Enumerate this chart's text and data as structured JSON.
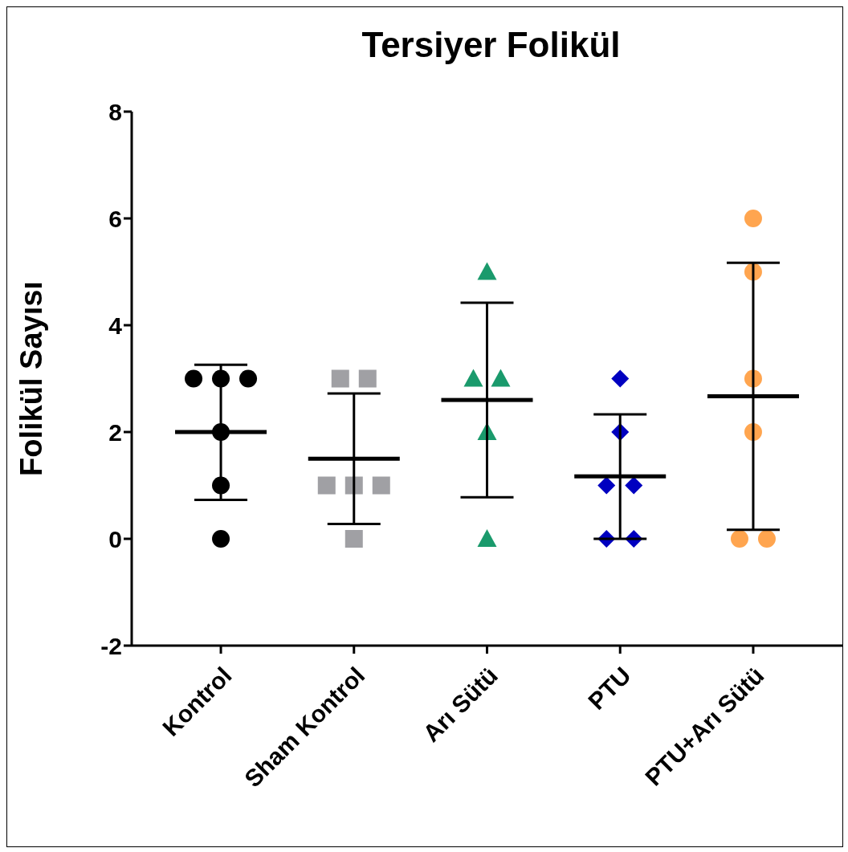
{
  "chart_data": {
    "type": "scatter",
    "title": "Tersiyer Folikül",
    "ylabel": "Folikül Sayısı",
    "categories": [
      "Kontrol",
      "Sham Kontrol",
      "Arı Sütü",
      "PTU",
      "PTU+Arı Sütü"
    ],
    "ylim": [
      -2,
      8
    ],
    "yticks": [
      -2,
      0,
      2,
      4,
      6,
      8
    ],
    "series": [
      {
        "x": [
          "Kontrol",
          "Kontrol",
          "Kontrol",
          "Kontrol",
          "Kontrol",
          "Kontrol"
        ],
        "values": [
          3,
          3,
          3,
          2,
          1,
          0
        ],
        "color": "#000000",
        "marker": "circle"
      },
      {
        "x": [
          "Sham Kontrol",
          "Sham Kontrol",
          "Sham Kontrol",
          "Sham Kontrol",
          "Sham Kontrol",
          "Sham Kontrol"
        ],
        "values": [
          3,
          3,
          1,
          1,
          1,
          0
        ],
        "color": "#a0a0a4",
        "marker": "square"
      },
      {
        "x": [
          "Arı Sütü",
          "Arı Sütü",
          "Arı Sütü",
          "Arı Sütü",
          "Arı Sütü"
        ],
        "values": [
          5,
          3,
          3,
          2,
          0
        ],
        "color": "#1a9a6c",
        "marker": "triangle"
      },
      {
        "x": [
          "PTU",
          "PTU",
          "PTU",
          "PTU",
          "PTU",
          "PTU"
        ],
        "values": [
          3,
          2,
          1,
          1,
          0,
          0
        ],
        "color": "#0000c0",
        "marker": "diamond"
      },
      {
        "x": [
          "PTU+Arı Sütü",
          "PTU+Arı Sütü",
          "PTU+Arı Sütü",
          "PTU+Arı Sütü",
          "PTU+Arı Sütü",
          "PTU+Arı Sütü"
        ],
        "values": [
          6,
          5,
          3,
          2,
          0,
          0
        ],
        "color": "#ffa54f",
        "marker": "circle"
      },
      {
        "type": "box",
        "color": "#000000",
        "boxes": [
          {
            "low": 0.73,
            "q1": 2,
            "median": 2,
            "q3": 2,
            "high": 3.26
          },
          {
            "low": 0.28,
            "q1": 1.5,
            "median": 1.5,
            "q3": 1.5,
            "high": 2.72
          },
          {
            "low": 0.78,
            "q1": 2.6,
            "median": 2.6,
            "q3": 2.6,
            "high": 4.42
          },
          {
            "low": 0,
            "q1": 1.17,
            "median": 1.17,
            "q3": 1.17,
            "high": 2.33
          },
          {
            "low": 0.17,
            "q1": 2.67,
            "median": 2.67,
            "q3": 2.67,
            "high": 5.17
          }
        ]
      }
    ]
  }
}
